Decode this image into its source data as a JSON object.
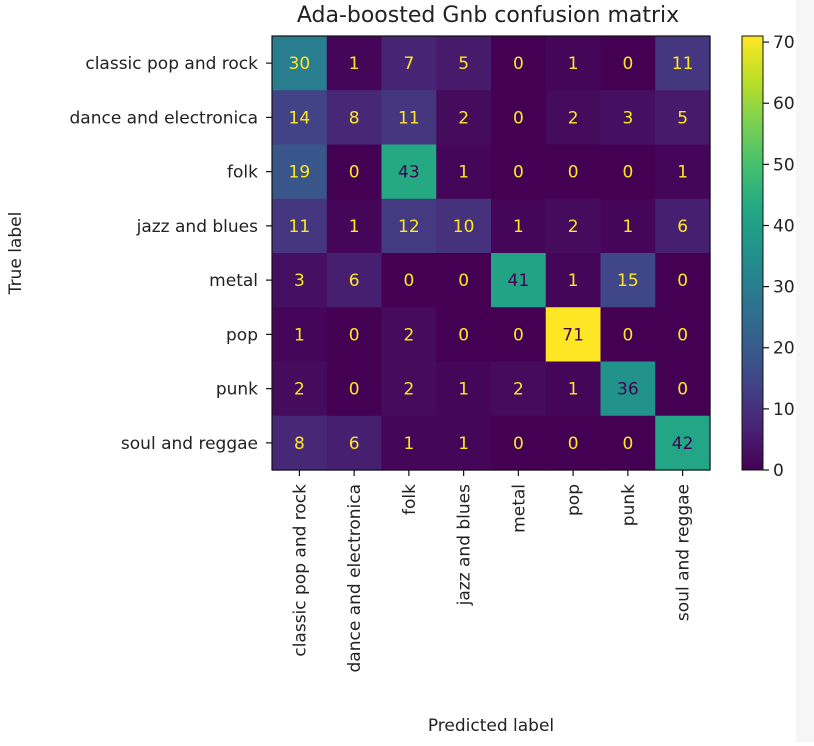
{
  "chart_data": {
    "type": "heatmap",
    "title": "Ada-boosted Gnb confusion matrix",
    "xlabel": "Predicted label",
    "ylabel": "True label",
    "labels": [
      "classic pop and rock",
      "dance and electronica",
      "folk",
      "jazz and blues",
      "metal",
      "pop",
      "punk",
      "soul and reggae"
    ],
    "matrix": [
      [
        30,
        1,
        7,
        5,
        0,
        1,
        0,
        11
      ],
      [
        14,
        8,
        11,
        2,
        0,
        2,
        3,
        5
      ],
      [
        19,
        0,
        43,
        1,
        0,
        0,
        0,
        1
      ],
      [
        11,
        1,
        12,
        10,
        1,
        2,
        1,
        6
      ],
      [
        3,
        6,
        0,
        0,
        41,
        1,
        15,
        0
      ],
      [
        1,
        0,
        2,
        0,
        0,
        71,
        0,
        0
      ],
      [
        2,
        0,
        2,
        1,
        2,
        1,
        36,
        0
      ],
      [
        8,
        6,
        1,
        1,
        0,
        0,
        0,
        42
      ]
    ],
    "colormap": "viridis",
    "colorbar": {
      "range": [
        0,
        71
      ],
      "ticks": [
        0,
        10,
        20,
        30,
        40,
        50,
        60,
        70
      ]
    },
    "text_colors": {
      "on_dark": "#fde725",
      "on_light": "#440154"
    },
    "grid": false,
    "legend": "colorbar-right"
  }
}
